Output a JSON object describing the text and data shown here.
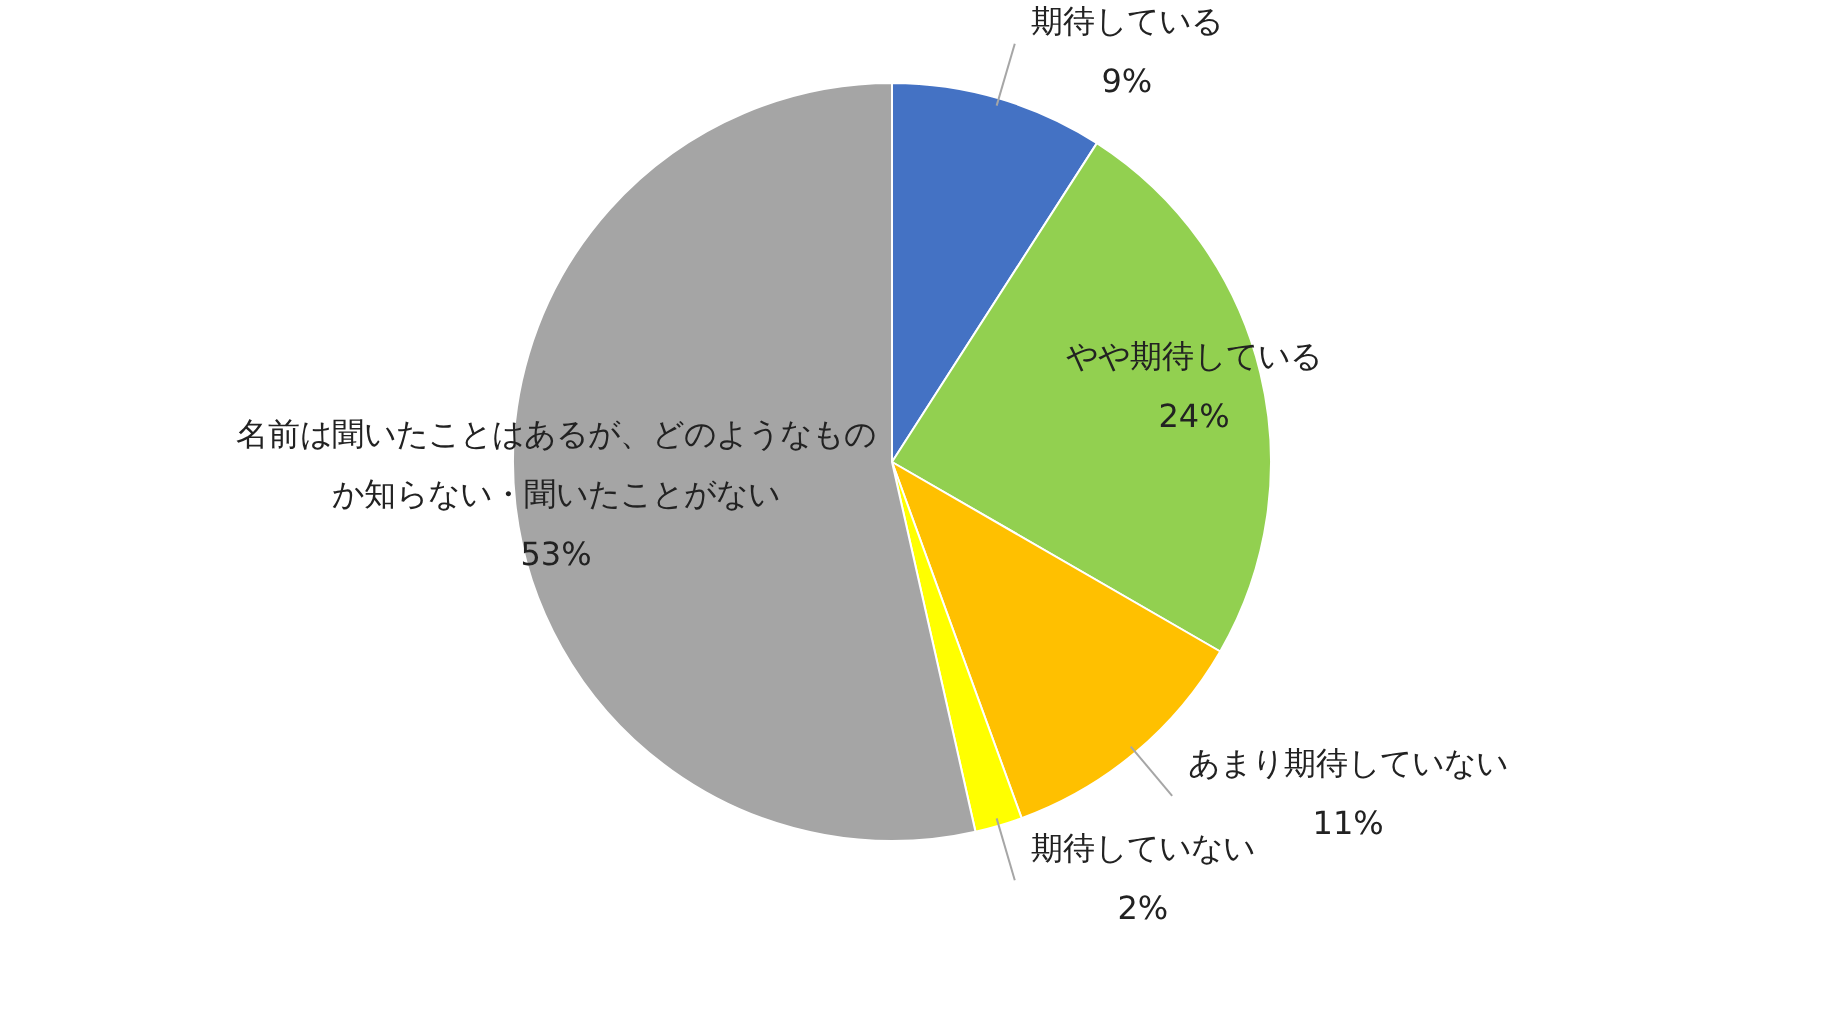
{
  "chart_data": {
    "type": "pie",
    "categories": [
      "期待している",
      "やや期待している",
      "あまり期待していない",
      "期待していない",
      "名前は聞いたことはあるが、どのようなものか知らない・聞いたことがない"
    ],
    "values": [
      9,
      24,
      11,
      2,
      53
    ],
    "colors": [
      "#4472c4",
      "#92d050",
      "#ffc000",
      "#ffff00",
      "#a5a5a5"
    ],
    "value_labels": [
      "9%",
      "24%",
      "11%",
      "2%",
      "53%"
    ],
    "legend": false
  }
}
